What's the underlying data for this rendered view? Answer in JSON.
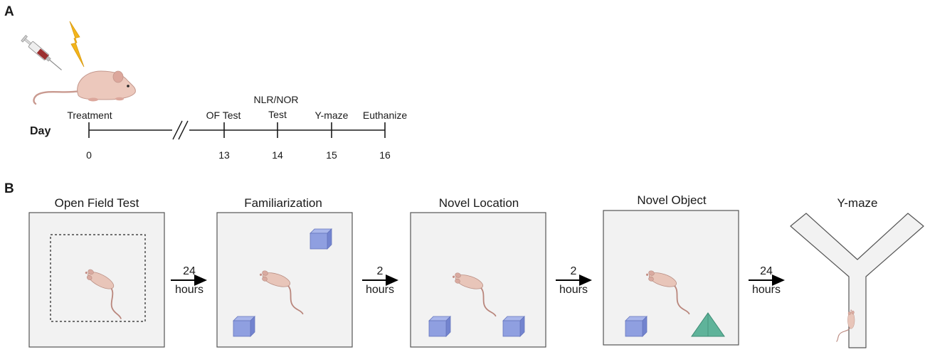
{
  "panel_a": {
    "letter": "A",
    "day_label": "Day",
    "events": [
      {
        "label": "Treatment",
        "day": "0"
      },
      {
        "label": "OF Test",
        "day": "13"
      },
      {
        "label_line1": "NLR/NOR",
        "label_line2": "Test",
        "day": "14"
      },
      {
        "label": "Y-maze",
        "day": "15"
      },
      {
        "label": "Euthanize",
        "day": "16"
      }
    ]
  },
  "panel_b": {
    "letter": "B",
    "stages": [
      {
        "title": "Open Field Test"
      },
      {
        "title": "Familiarization"
      },
      {
        "title": "Novel Location"
      },
      {
        "title": "Novel Object"
      },
      {
        "title": "Y-maze"
      }
    ],
    "intervals": [
      {
        "value": "24",
        "unit": "hours"
      },
      {
        "value": "2",
        "unit": "hours"
      },
      {
        "value": "2",
        "unit": "hours"
      },
      {
        "value": "24",
        "unit": "hours"
      }
    ]
  },
  "colors": {
    "arena_fill": "#f2f2f2",
    "arena_border": "#555555",
    "cube_face": "#8f9fe0",
    "cube_top": "#a9b6ea",
    "cube_side": "#7384cf",
    "triangle": "#5fb39a",
    "mouse_body": "#e8c5b9",
    "lightning": "#f3b51b"
  }
}
